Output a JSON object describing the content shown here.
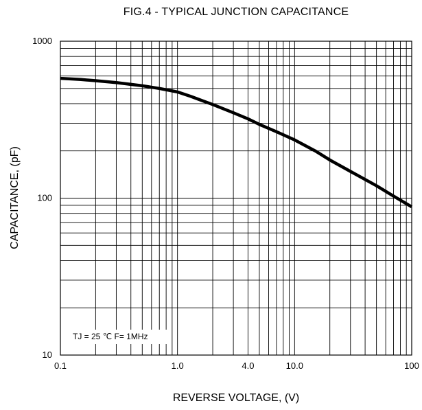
{
  "chart_data": {
    "type": "line",
    "title": "FIG.4 - TYPICAL JUNCTION CAPACITANCE",
    "xlabel": "REVERSE VOLTAGE, (V)",
    "ylabel": "CAPACITANCE, (pF)",
    "x_scale": "log",
    "y_scale": "log",
    "xlim": [
      0.1,
      100
    ],
    "ylim": [
      10,
      1000
    ],
    "grid": true,
    "x_ticks": [
      {
        "value": 0.1,
        "label": "0.1"
      },
      {
        "value": 1,
        "label": "1.0"
      },
      {
        "value": 4,
        "label": "4.0"
      },
      {
        "value": 10,
        "label": "10.0"
      },
      {
        "value": 100,
        "label": "100"
      }
    ],
    "y_ticks": [
      {
        "value": 10,
        "label": "10"
      },
      {
        "value": 100,
        "label": "100"
      },
      {
        "value": 1000,
        "label": "1000"
      }
    ],
    "series": [
      {
        "x": [
          0.1,
          0.15,
          0.2,
          0.3,
          0.5,
          0.7,
          1.0,
          1.3,
          1.6,
          2,
          3,
          4,
          5,
          7,
          10,
          15,
          20,
          30,
          50,
          70,
          100
        ],
        "y": [
          580,
          570,
          560,
          545,
          520,
          500,
          475,
          445,
          420,
          395,
          350,
          320,
          295,
          265,
          235,
          200,
          175,
          148,
          120,
          103,
          88
        ]
      }
    ],
    "annotation": "TJ = 25 ℃  F= 1MHz"
  }
}
